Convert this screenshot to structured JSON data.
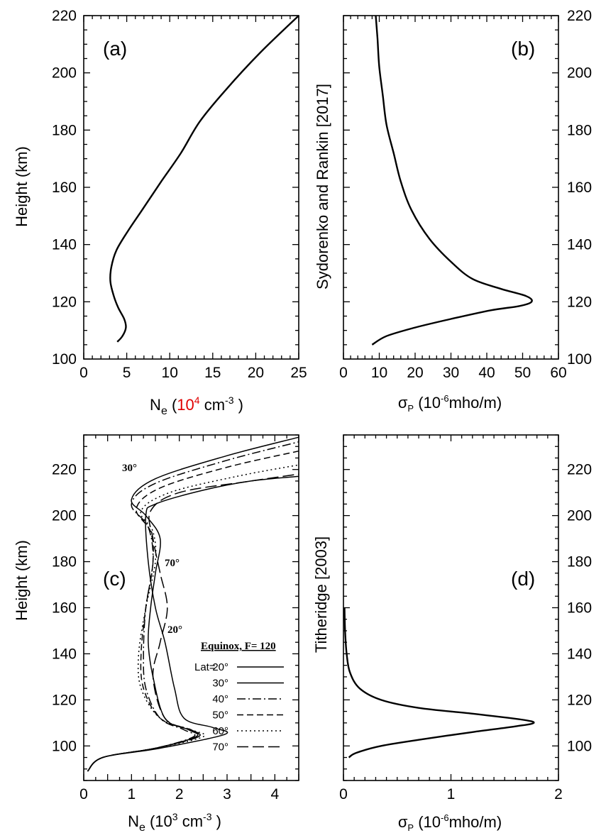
{
  "chart_data": [
    {
      "panel": "(a)",
      "type": "line",
      "ylabel": "Height  (km)",
      "xlabel": "Ne (10^4 cm-3)",
      "xlim": [
        0,
        25
      ],
      "ylim": [
        100,
        220
      ],
      "xticks": [
        0,
        5,
        10,
        15,
        20,
        25
      ],
      "yticks": [
        100,
        120,
        140,
        160,
        180,
        200,
        220
      ],
      "x": [
        3.9,
        4.5,
        4.9,
        4.7,
        4.0,
        3.5,
        3.1,
        3.2,
        3.8,
        5.2,
        7.0,
        9.0,
        11.3,
        13.5,
        16.5,
        20.5,
        25.0
      ],
      "y": [
        106,
        108,
        111,
        114,
        118,
        122,
        127,
        132,
        138,
        145,
        153,
        162,
        172,
        183,
        194,
        207,
        220
      ]
    },
    {
      "panel": "(b)",
      "type": "line",
      "right_ylabel": "Sydorenko and Rankin [2017]",
      "xlabel": "σP (10^-6 mho/m)",
      "xlim": [
        0,
        60
      ],
      "ylim": [
        100,
        220
      ],
      "xticks": [
        0,
        10,
        20,
        30,
        40,
        50,
        60
      ],
      "yticks": [
        100,
        120,
        140,
        160,
        180,
        200,
        220
      ],
      "x": [
        8,
        12,
        20,
        30,
        41,
        49,
        52.5,
        51,
        44,
        36,
        30,
        24,
        19,
        16,
        14,
        12,
        11,
        10,
        9.5,
        9
      ],
      "y": [
        105,
        108,
        111,
        114,
        117,
        118.5,
        120,
        122,
        124.5,
        128,
        134,
        142,
        152,
        162,
        172,
        182,
        192,
        202,
        212,
        220
      ]
    },
    {
      "panel": "(c)",
      "type": "line",
      "ylabel": "Height  (km)",
      "xlabel": "Ne (10^3 cm-3)",
      "xlim": [
        0,
        4.5
      ],
      "ylim": [
        85,
        235
      ],
      "xticks": [
        0,
        0.5,
        1,
        1.5,
        2,
        2.5,
        3,
        3.5,
        4,
        4.5
      ],
      "xticklabels": [
        "0",
        "1",
        "2",
        "3",
        "4"
      ],
      "yticks": [
        100,
        120,
        140,
        160,
        180,
        200,
        220
      ],
      "annotations": [
        "30°",
        "70°",
        "20°"
      ],
      "legend": {
        "title": "Equinox,  F= 120",
        "prefix": "Lat=",
        "entries": [
          "20°",
          "30°",
          "40°",
          "50°",
          "60°",
          "70°"
        ]
      },
      "series": [
        {
          "name": "20°",
          "style": "solid",
          "x": [
            0.08,
            0.4,
            1.6,
            2.95,
            2.7,
            2.1,
            1.9,
            1.7,
            1.5,
            1.35,
            1.3,
            1.5,
            2.5,
            3.5,
            4.5
          ],
          "y": [
            89,
            95,
            99,
            105,
            108,
            112,
            125,
            145,
            160,
            180,
            200,
            205,
            211,
            215,
            217
          ]
        },
        {
          "name": "30°",
          "style": "solid",
          "x": [
            0.08,
            0.4,
            1.5,
            2.35,
            2.2,
            1.7,
            1.45,
            1.35,
            1.4,
            1.5,
            1.6,
            1.3,
            1.0,
            1.5,
            3.0,
            4.5
          ],
          "y": [
            89,
            95,
            99,
            104,
            107,
            112,
            130,
            145,
            160,
            175,
            190,
            200,
            207,
            216,
            226,
            234
          ]
        },
        {
          "name": "40°",
          "style": "dashdot",
          "x": [
            0.08,
            0.4,
            1.5,
            2.3,
            2.1,
            1.6,
            1.3,
            1.25,
            1.3,
            1.45,
            1.35,
            1.0,
            1.5,
            3.0,
            4.5
          ],
          "y": [
            89,
            95,
            99,
            104,
            107,
            112,
            125,
            140,
            160,
            180,
            195,
            205,
            214,
            224,
            232
          ]
        },
        {
          "name": "50°",
          "style": "dashed",
          "x": [
            0.08,
            0.4,
            1.5,
            2.4,
            2.2,
            1.6,
            1.25,
            1.2,
            1.3,
            1.45,
            1.4,
            1.1,
            1.6,
            3.0,
            4.5
          ],
          "y": [
            89,
            95,
            99,
            104,
            107,
            112,
            125,
            140,
            160,
            180,
            193,
            203,
            212,
            221,
            228
          ]
        },
        {
          "name": "60°",
          "style": "dotted",
          "x": [
            0.08,
            0.4,
            1.5,
            2.5,
            2.25,
            1.6,
            1.2,
            1.15,
            1.3,
            1.5,
            1.45,
            1.2,
            1.8,
            3.2,
            4.5
          ],
          "y": [
            89,
            95,
            99,
            104,
            107,
            112,
            125,
            140,
            160,
            180,
            193,
            202,
            210,
            217,
            222
          ]
        },
        {
          "name": "70°",
          "style": "longdash",
          "x": [
            0.08,
            0.4,
            1.5,
            2.4,
            2.25,
            1.7,
            1.45,
            1.6,
            1.75,
            1.6,
            1.45,
            1.4,
            2.0,
            3.5,
            4.5
          ],
          "y": [
            89,
            95,
            99,
            104,
            107,
            112,
            130,
            145,
            160,
            175,
            190,
            202,
            210,
            215,
            218
          ]
        }
      ]
    },
    {
      "panel": "(d)",
      "type": "line",
      "right_ylabel": "Titheridge [2003]",
      "xlabel": "σP (10^-6 mho/m)",
      "xlim": [
        0,
        2
      ],
      "ylim": [
        85,
        235
      ],
      "xticks": [
        0,
        1,
        2
      ],
      "yticks": [
        100,
        120,
        140,
        160,
        180,
        200,
        220
      ],
      "x": [
        0.05,
        0.12,
        0.35,
        0.75,
        1.2,
        1.6,
        1.77,
        1.65,
        1.2,
        0.7,
        0.35,
        0.15,
        0.06,
        0.03,
        0.015,
        0.01
      ],
      "y": [
        95,
        97,
        100,
        103,
        106,
        108.5,
        110,
        111.5,
        114,
        116.5,
        120,
        125,
        132,
        140,
        150,
        160
      ]
    }
  ]
}
